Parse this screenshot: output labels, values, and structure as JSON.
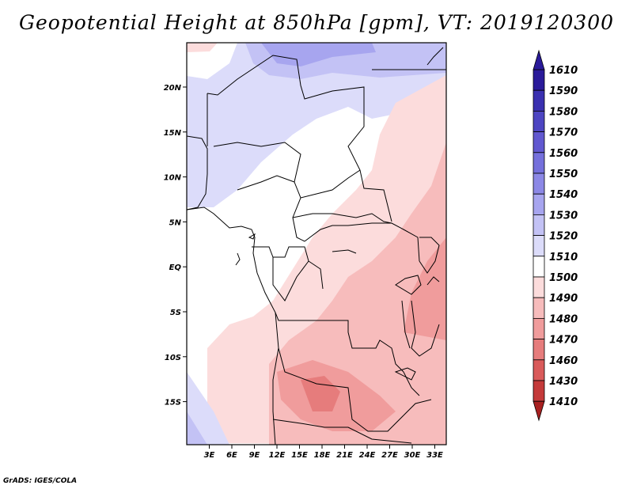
{
  "title": "Geopotential Height at 850hPa [gpm], VT: 2019120300",
  "credit": "GrADS: IGES/COLA",
  "chart_data": {
    "type": "heatmap",
    "variable": "Geopotential Height",
    "level": "850hPa",
    "units": "gpm",
    "valid_time": "2019120300",
    "x_ticks": [
      "3E",
      "6E",
      "9E",
      "12E",
      "15E",
      "18E",
      "21E",
      "24E",
      "27E",
      "30E",
      "33E"
    ],
    "y_ticks": [
      "20N",
      "15N",
      "10N",
      "5N",
      "EQ",
      "5S",
      "10S",
      "15S"
    ],
    "colorbar_levels": [
      1610,
      1590,
      1580,
      1570,
      1560,
      1550,
      1540,
      1530,
      1520,
      1510,
      1500,
      1490,
      1480,
      1470,
      1460,
      1430,
      1410
    ],
    "colorbar_colors": [
      "#2a1a9a",
      "#3a30b0",
      "#4d45c2",
      "#6158d0",
      "#7570dc",
      "#8c88e6",
      "#a7a5ef",
      "#c3c2f5",
      "#dcdcfa",
      "#ffffff",
      "#fcdcdc",
      "#f7bcbc",
      "#f09c9c",
      "#e67c7c",
      "#d95a5a",
      "#c43a3a",
      "#a82020"
    ]
  }
}
